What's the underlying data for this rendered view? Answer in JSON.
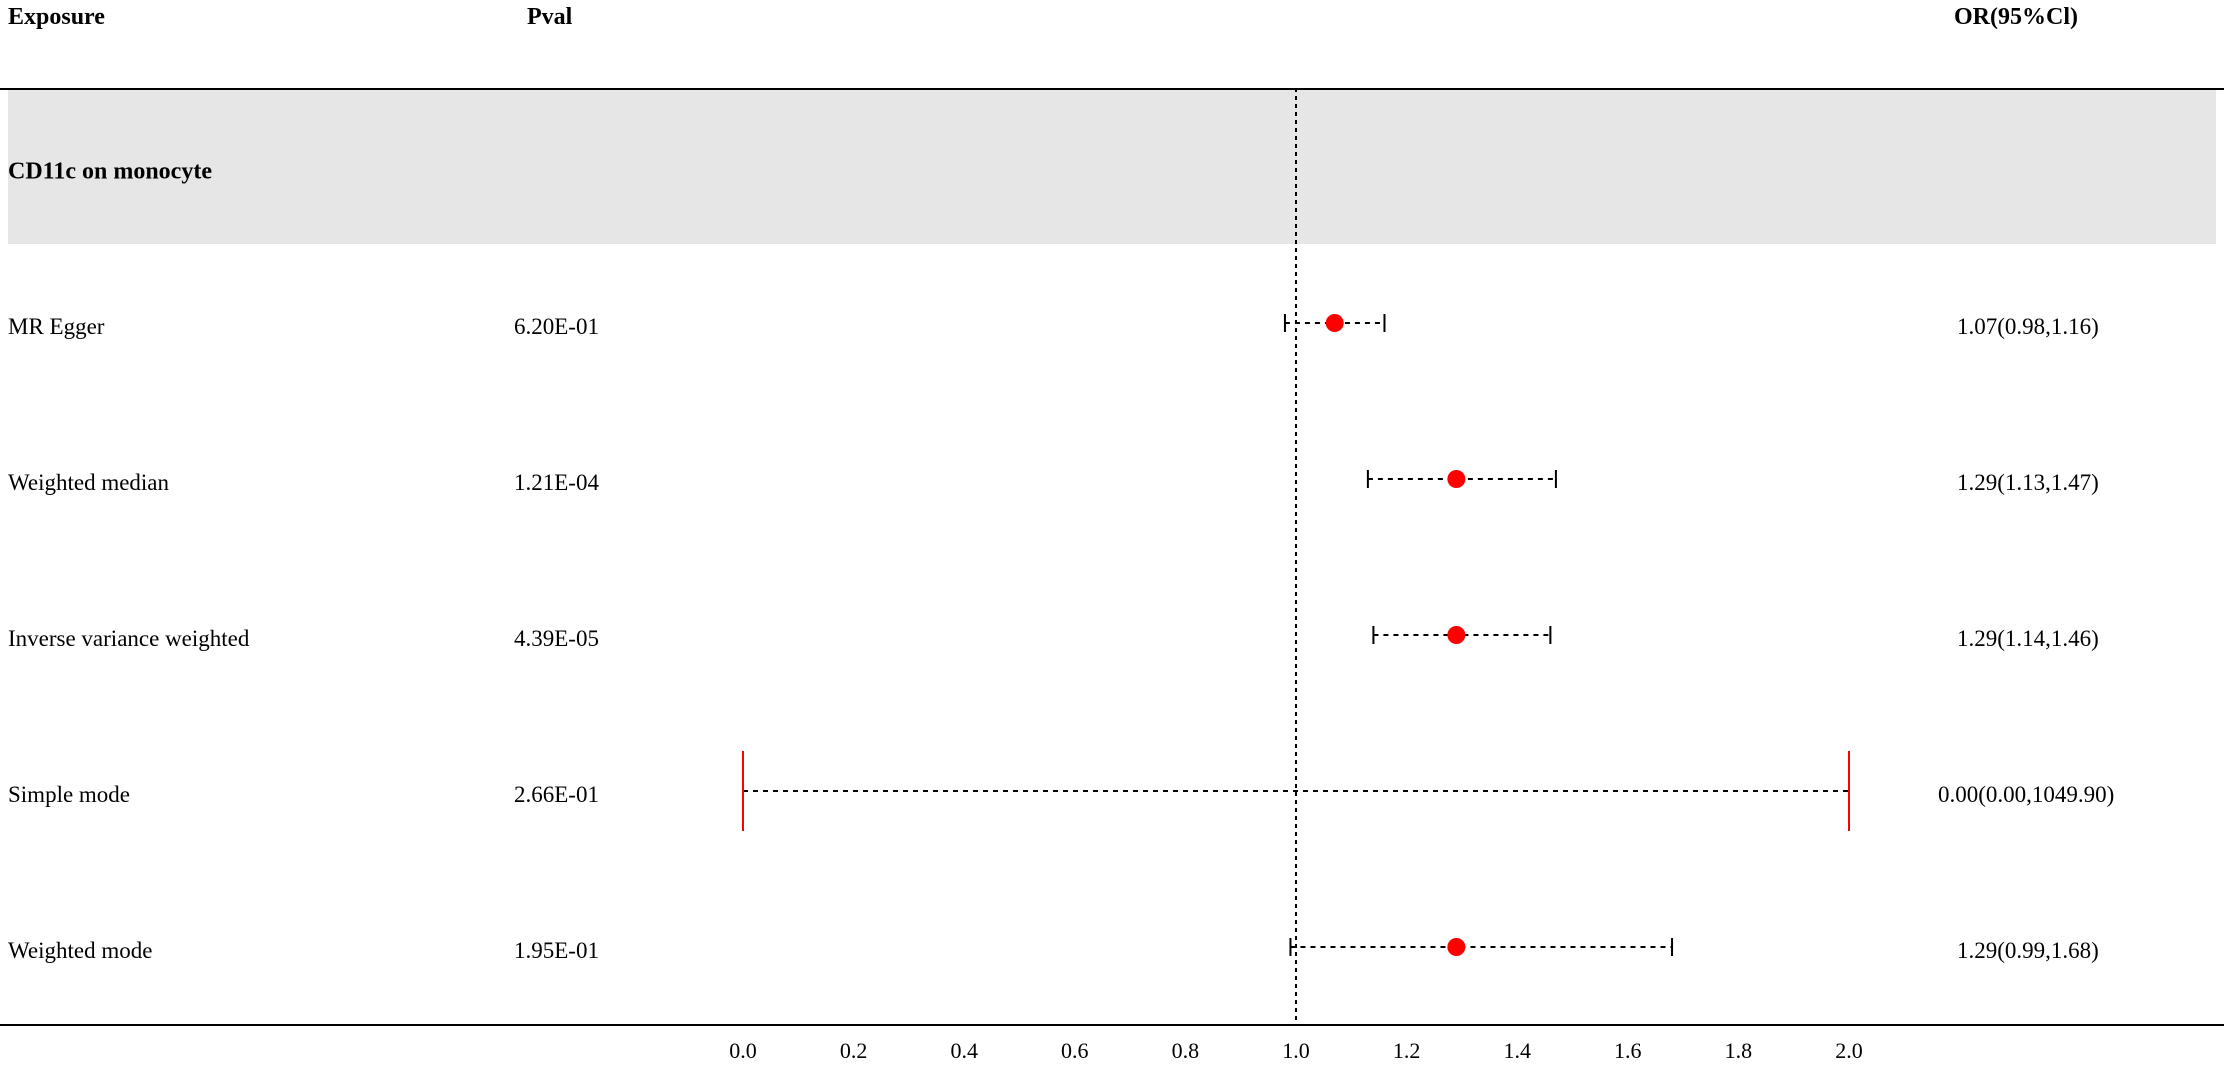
{
  "header": {
    "exposure": "Exposure",
    "pval": "Pval",
    "or": "OR(95%Cl)"
  },
  "group": {
    "label": "CD11c on monocyte"
  },
  "rows": [
    {
      "method": "MR Egger",
      "pval": "6.20E-01",
      "or_text": "1.07(0.98,1.16)"
    },
    {
      "method": "Weighted median",
      "pval": "1.21E-04",
      "or_text": "1.29(1.13,1.47)"
    },
    {
      "method": "Inverse variance weighted",
      "pval": "4.39E-05",
      "or_text": "1.29(1.14,1.46)"
    },
    {
      "method": "Simple mode",
      "pval": "2.66E-01",
      "or_text": "0.00(0.00,1049.90)"
    },
    {
      "method": "Weighted mode",
      "pval": "1.95E-01",
      "or_text": "1.29(0.99,1.68)"
    }
  ],
  "chart_data": {
    "type": "forest",
    "reference_line": 1.0,
    "xlim": [
      0.0,
      2.0
    ],
    "xticks": [
      "0.0",
      "0.2",
      "0.4",
      "0.6",
      "0.8",
      "1.0",
      "1.2",
      "1.4",
      "1.6",
      "1.8",
      "2.0"
    ],
    "series": [
      {
        "name": "MR Egger",
        "or": 1.07,
        "lower": 0.98,
        "upper": 1.16
      },
      {
        "name": "Weighted median",
        "or": 1.29,
        "lower": 1.13,
        "upper": 1.47
      },
      {
        "name": "Inverse variance weighted",
        "or": 1.29,
        "lower": 1.14,
        "upper": 1.46
      },
      {
        "name": "Simple mode",
        "or": 0.0,
        "lower": 0.0,
        "upper": 1049.9
      },
      {
        "name": "Weighted mode",
        "or": 1.29,
        "lower": 0.99,
        "upper": 1.68
      }
    ],
    "colors": {
      "point": "#ff0000",
      "clipped_marker": "#ff0000",
      "ci_line": "#000000"
    }
  }
}
